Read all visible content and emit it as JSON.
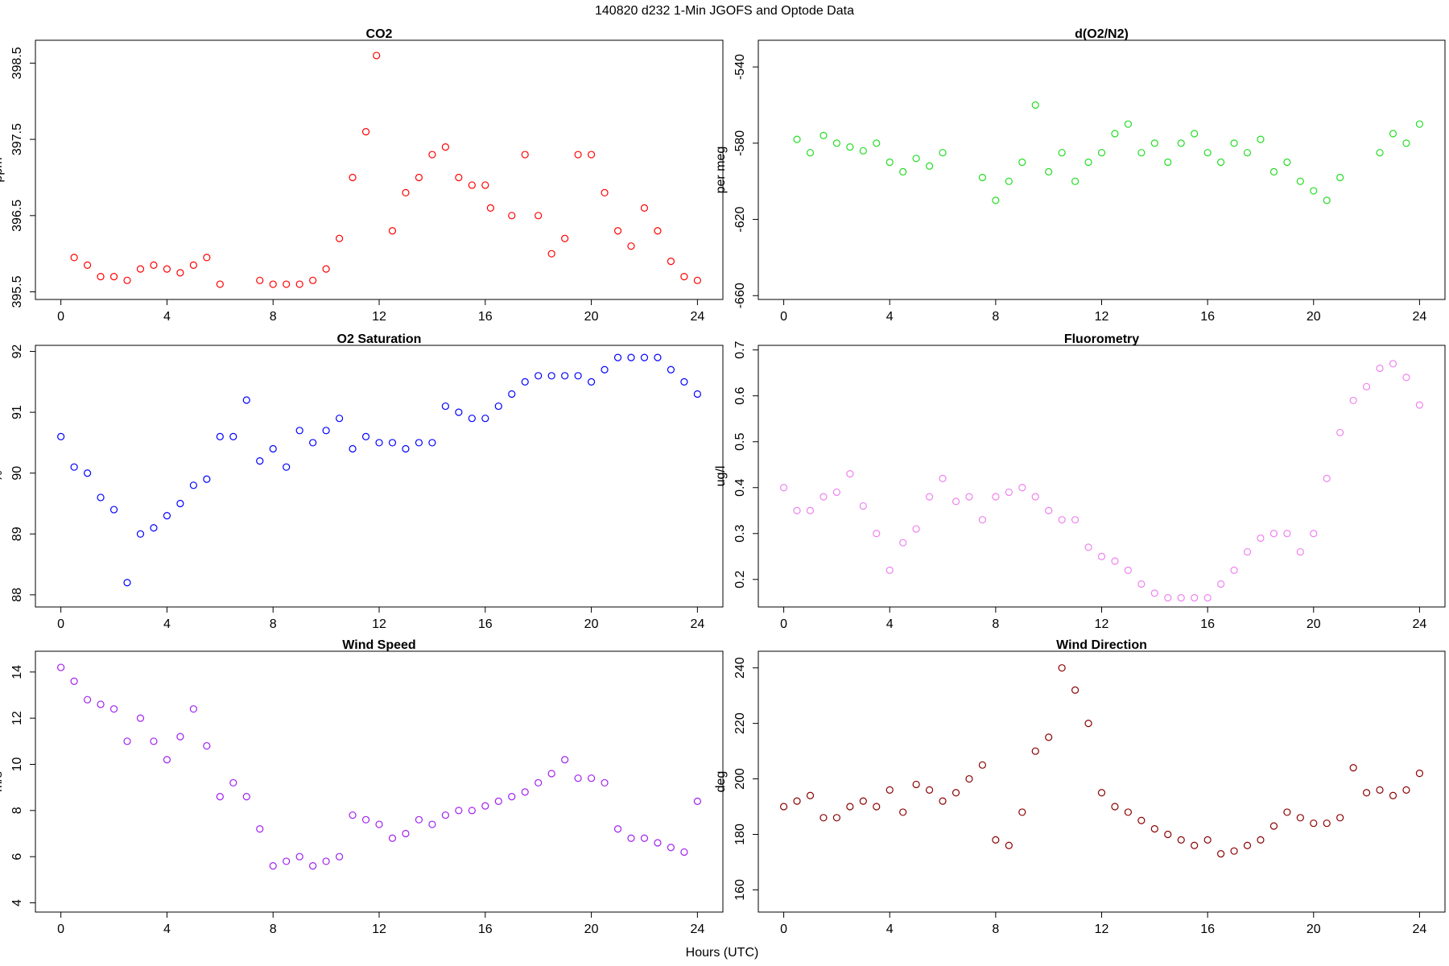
{
  "title": "140820   d232   1-Min  JGOFS and Optode Data",
  "xlabel": "Hours (UTC)",
  "chart_data": [
    {
      "type": "scatter",
      "title": "CO2",
      "ylabel": "ppm",
      "color": "#ff0000",
      "x": [
        0.5,
        1,
        1.5,
        2,
        2.5,
        3,
        3.5,
        4,
        4.5,
        5,
        5.5,
        6,
        7.5,
        8,
        8.5,
        9,
        9.5,
        10,
        10.5,
        11,
        11.5,
        11.9,
        12.5,
        13,
        13.5,
        14,
        14.5,
        15,
        15.5,
        16,
        16.2,
        17,
        17.5,
        18,
        18.5,
        19,
        19.5,
        20,
        20.5,
        21,
        21.5,
        22,
        22.5,
        23,
        23.5,
        24
      ],
      "y": [
        395.95,
        395.85,
        395.7,
        395.7,
        395.65,
        395.8,
        395.85,
        395.8,
        395.75,
        395.85,
        395.95,
        395.6,
        395.65,
        395.6,
        395.6,
        395.6,
        395.65,
        395.8,
        396.2,
        397.0,
        397.6,
        398.6,
        396.3,
        396.8,
        397.0,
        397.3,
        397.4,
        397.0,
        396.9,
        396.9,
        396.6,
        396.5,
        397.3,
        396.5,
        396.0,
        396.2,
        397.3,
        397.3,
        396.8,
        396.3,
        396.1,
        396.6,
        396.3,
        395.9,
        395.7,
        395.65
      ],
      "xlim": [
        -0.96,
        24.96
      ],
      "xticks": [
        0,
        4,
        8,
        12,
        16,
        20,
        24
      ],
      "ylim": [
        395.4,
        398.8
      ],
      "yticks": [
        395.5,
        396.5,
        397.5,
        398.5
      ]
    },
    {
      "type": "scatter",
      "title": "d(O2/N2)",
      "ylabel": "per meg",
      "color": "#22dd22",
      "x": [
        0.5,
        1,
        1.5,
        2,
        2.5,
        3,
        3.5,
        4,
        4.5,
        5,
        5.5,
        6,
        7.5,
        8,
        8.5,
        9,
        9.5,
        10,
        10.5,
        11,
        11.5,
        12,
        12.5,
        13,
        13.5,
        14,
        14.5,
        15,
        15.5,
        16,
        16.5,
        17,
        17.5,
        18,
        18.5,
        19,
        19.5,
        20,
        20.5,
        21,
        22.5,
        23,
        23.5,
        24
      ],
      "y": [
        -578,
        -585,
        -576,
        -580,
        -582,
        -584,
        -580,
        -590,
        -595,
        -588,
        -592,
        -585,
        -598,
        -610,
        -600,
        -590,
        -560,
        -595,
        -585,
        -600,
        -590,
        -585,
        -575,
        -570,
        -585,
        -580,
        -590,
        -580,
        -575,
        -585,
        -590,
        -580,
        -585,
        -578,
        -595,
        -590,
        -600,
        -605,
        -610,
        -598,
        -585,
        -575,
        -580,
        -570
      ],
      "xlim": [
        -0.96,
        24.96
      ],
      "xticks": [
        0,
        4,
        8,
        12,
        16,
        20,
        24
      ],
      "ylim": [
        -662,
        -526
      ],
      "yticks": [
        -660,
        -620,
        -580,
        -540
      ]
    },
    {
      "type": "scatter",
      "title": "O2 Saturation",
      "ylabel": "%",
      "color": "#0000ff",
      "x": [
        0,
        0.5,
        1,
        1.5,
        2,
        2.5,
        3,
        3.5,
        4,
        4.5,
        5,
        5.5,
        6,
        6.5,
        7,
        7.5,
        8,
        8.5,
        9,
        9.5,
        10,
        10.5,
        11,
        11.5,
        12,
        12.5,
        13,
        13.5,
        14,
        14.5,
        15,
        15.5,
        16,
        16.5,
        17,
        17.5,
        18,
        18.5,
        19,
        19.5,
        20,
        20.5,
        21,
        21.5,
        22,
        22.5,
        23,
        23.5,
        24
      ],
      "y": [
        90.6,
        90.1,
        90.0,
        89.6,
        89.4,
        88.2,
        89.0,
        89.1,
        89.3,
        89.5,
        89.8,
        89.9,
        90.6,
        90.6,
        91.2,
        90.2,
        90.4,
        90.1,
        90.7,
        90.5,
        90.7,
        90.9,
        90.4,
        90.6,
        90.5,
        90.5,
        90.4,
        90.5,
        90.5,
        91.1,
        91.0,
        90.9,
        90.9,
        91.1,
        91.3,
        91.5,
        91.6,
        91.6,
        91.6,
        91.6,
        91.5,
        91.7,
        91.9,
        91.9,
        91.9,
        91.9,
        91.7,
        91.5,
        91.3
      ],
      "xlim": [
        -0.96,
        24.96
      ],
      "xticks": [
        0,
        4,
        8,
        12,
        16,
        20,
        24
      ],
      "ylim": [
        87.8,
        92.1
      ],
      "yticks": [
        88,
        89,
        90,
        91,
        92
      ]
    },
    {
      "type": "scatter",
      "title": "Fluorometry",
      "ylabel": "ug/l",
      "color": "#ee82ee",
      "x": [
        0,
        0.5,
        1,
        1.5,
        2,
        2.5,
        3,
        3.5,
        4,
        4.5,
        5,
        5.5,
        6,
        6.5,
        7,
        7.5,
        8,
        8.5,
        9,
        9.5,
        10,
        10.5,
        11,
        11.5,
        12,
        12.5,
        13,
        13.5,
        14,
        14.5,
        15,
        15.5,
        16,
        16.5,
        17,
        17.5,
        18,
        18.5,
        19,
        19.5,
        20,
        20.5,
        21,
        21.5,
        22,
        22.5,
        23,
        23.5,
        24
      ],
      "y": [
        0.4,
        0.35,
        0.35,
        0.38,
        0.39,
        0.43,
        0.36,
        0.3,
        0.22,
        0.28,
        0.31,
        0.38,
        0.42,
        0.37,
        0.38,
        0.33,
        0.38,
        0.39,
        0.4,
        0.38,
        0.35,
        0.33,
        0.33,
        0.27,
        0.25,
        0.24,
        0.22,
        0.19,
        0.17,
        0.16,
        0.16,
        0.16,
        0.16,
        0.19,
        0.22,
        0.26,
        0.29,
        0.3,
        0.3,
        0.26,
        0.3,
        0.42,
        0.52,
        0.59,
        0.62,
        0.66,
        0.67,
        0.64,
        0.58
      ],
      "xlim": [
        -0.96,
        24.96
      ],
      "xticks": [
        0,
        4,
        8,
        12,
        16,
        20,
        24
      ],
      "ylim": [
        0.14,
        0.71
      ],
      "yticks": [
        0.2,
        0.3,
        0.4,
        0.5,
        0.6,
        0.7
      ]
    },
    {
      "type": "scatter",
      "title": "Wind Speed",
      "ylabel": "m/s",
      "color": "#a020f0",
      "x": [
        0,
        0.5,
        1,
        1.5,
        2,
        2.5,
        3,
        3.5,
        4,
        4.5,
        5,
        5.5,
        6,
        6.5,
        7,
        7.5,
        8,
        8.5,
        9,
        9.5,
        10,
        10.5,
        11,
        11.5,
        12,
        12.5,
        13,
        13.5,
        14,
        14.5,
        15,
        15.5,
        16,
        16.5,
        17,
        17.5,
        18,
        18.5,
        19,
        19.5,
        20,
        20.5,
        21,
        21.5,
        22,
        22.5,
        23,
        23.5,
        24
      ],
      "y": [
        14.2,
        13.6,
        12.8,
        12.6,
        12.4,
        11.0,
        12.0,
        11.0,
        10.2,
        11.2,
        12.4,
        10.8,
        8.6,
        9.2,
        8.6,
        7.2,
        5.6,
        5.8,
        6.0,
        5.6,
        5.8,
        6.0,
        7.8,
        7.6,
        7.4,
        6.8,
        7.0,
        7.6,
        7.4,
        7.8,
        8.0,
        8.0,
        8.2,
        8.4,
        8.6,
        8.8,
        9.2,
        9.6,
        10.2,
        9.4,
        9.4,
        9.2,
        7.2,
        6.8,
        6.8,
        6.6,
        6.4,
        6.2,
        8.4
      ],
      "xlim": [
        -0.96,
        24.96
      ],
      "xticks": [
        0,
        4,
        8,
        12,
        16,
        20,
        24
      ],
      "ylim": [
        3.6,
        14.9
      ],
      "yticks": [
        4,
        6,
        8,
        10,
        12,
        14
      ]
    },
    {
      "type": "scatter",
      "title": "Wind Direction",
      "ylabel": "deg",
      "color": "#8b0000",
      "x": [
        0,
        0.5,
        1,
        1.5,
        2,
        2.5,
        3,
        3.5,
        4,
        4.5,
        5,
        5.5,
        6,
        6.5,
        7,
        7.5,
        8,
        8.5,
        9,
        9.5,
        10,
        10.5,
        11,
        11.5,
        12,
        12.5,
        13,
        13.5,
        14,
        14.5,
        15,
        15.5,
        16,
        16.5,
        17,
        17.5,
        18,
        18.5,
        19,
        19.5,
        20,
        20.5,
        21,
        21.5,
        22,
        22.5,
        23,
        23.5,
        24
      ],
      "y": [
        190,
        192,
        194,
        186,
        186,
        190,
        192,
        190,
        196,
        188,
        198,
        196,
        192,
        195,
        200,
        205,
        178,
        176,
        188,
        210,
        215,
        240,
        232,
        220,
        195,
        190,
        188,
        185,
        182,
        180,
        178,
        176,
        178,
        173,
        174,
        176,
        178,
        183,
        188,
        186,
        184,
        184,
        186,
        204,
        195,
        196,
        194,
        196,
        202
      ],
      "xlim": [
        -0.96,
        24.96
      ],
      "xticks": [
        0,
        4,
        8,
        12,
        16,
        20,
        24
      ],
      "ylim": [
        152,
        246
      ],
      "yticks": [
        160,
        180,
        200,
        220,
        240
      ]
    }
  ]
}
